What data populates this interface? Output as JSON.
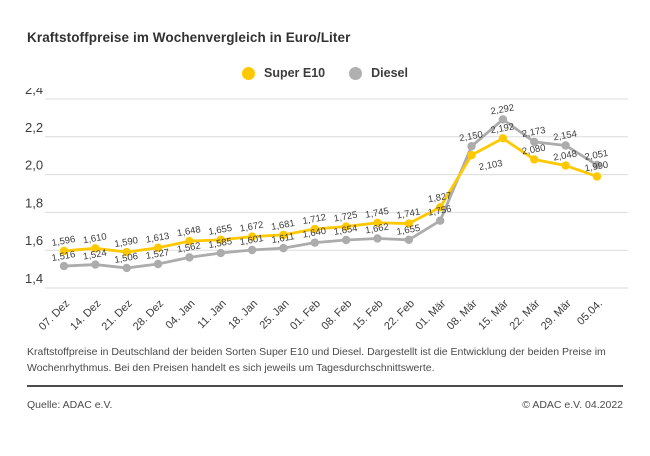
{
  "title": "Kraftstoffpreise im Wochenvergleich in Euro/Liter",
  "legend": [
    {
      "label": "Super E10",
      "color": "#FFC800"
    },
    {
      "label": "Diesel",
      "color": "#B0B0B0"
    }
  ],
  "chart_data": {
    "type": "line",
    "title": "Kraftstoffpreise im Wochenvergleich in Euro/Liter",
    "categories": [
      "07. Dez",
      "14. Dez",
      "21. Dez",
      "28. Dez",
      "04. Jan",
      "11. Jan",
      "18. Jan",
      "25. Jan",
      "01. Feb",
      "08. Feb",
      "15. Feb",
      "22. Feb",
      "01. Mär",
      "08. Mär",
      "15. Mär",
      "22. Mär",
      "29. Mär",
      "05.04."
    ],
    "series": [
      {
        "name": "Super E10",
        "color": "#FFC800",
        "values": [
          1.596,
          1.61,
          1.59,
          1.613,
          1.648,
          1.655,
          1.672,
          1.681,
          1.712,
          1.725,
          1.745,
          1.741,
          1.827,
          2.103,
          2.192,
          2.08,
          2.048,
          1.99
        ]
      },
      {
        "name": "Diesel",
        "color": "#ACACAC",
        "values": [
          1.516,
          1.524,
          1.506,
          1.527,
          1.562,
          1.585,
          1.601,
          1.611,
          1.64,
          1.654,
          1.662,
          1.655,
          1.756,
          2.15,
          2.292,
          2.173,
          2.154,
          2.051
        ]
      }
    ],
    "ylim": [
      1.4,
      2.4
    ],
    "yticks": [
      2.4,
      2.2,
      2.0,
      1.8,
      1.6,
      1.4
    ],
    "decimal_separator": ",",
    "grid": true,
    "legend_position": "top-center",
    "marker": "circle",
    "label_below_point": {
      "series": "Super E10",
      "indices": [
        13
      ]
    },
    "colors": {
      "grid": "#DBDBDB",
      "tick_text": "#3c3c3c",
      "value_label_text": "#3c3c3c"
    }
  },
  "footer": {
    "description": "Kraftstoffpreise in Deutschland der beiden Sorten Super E10 und Diesel. Dargestellt ist die Entwicklung der beiden Preise im Wochenrhythmus. Bei den Preisen handelt es sich jeweils um Tagesdurchschnittswerte.",
    "source": "Quelle: ADAC e.V.",
    "copyright": "© ADAC e.V. 04.2022"
  }
}
